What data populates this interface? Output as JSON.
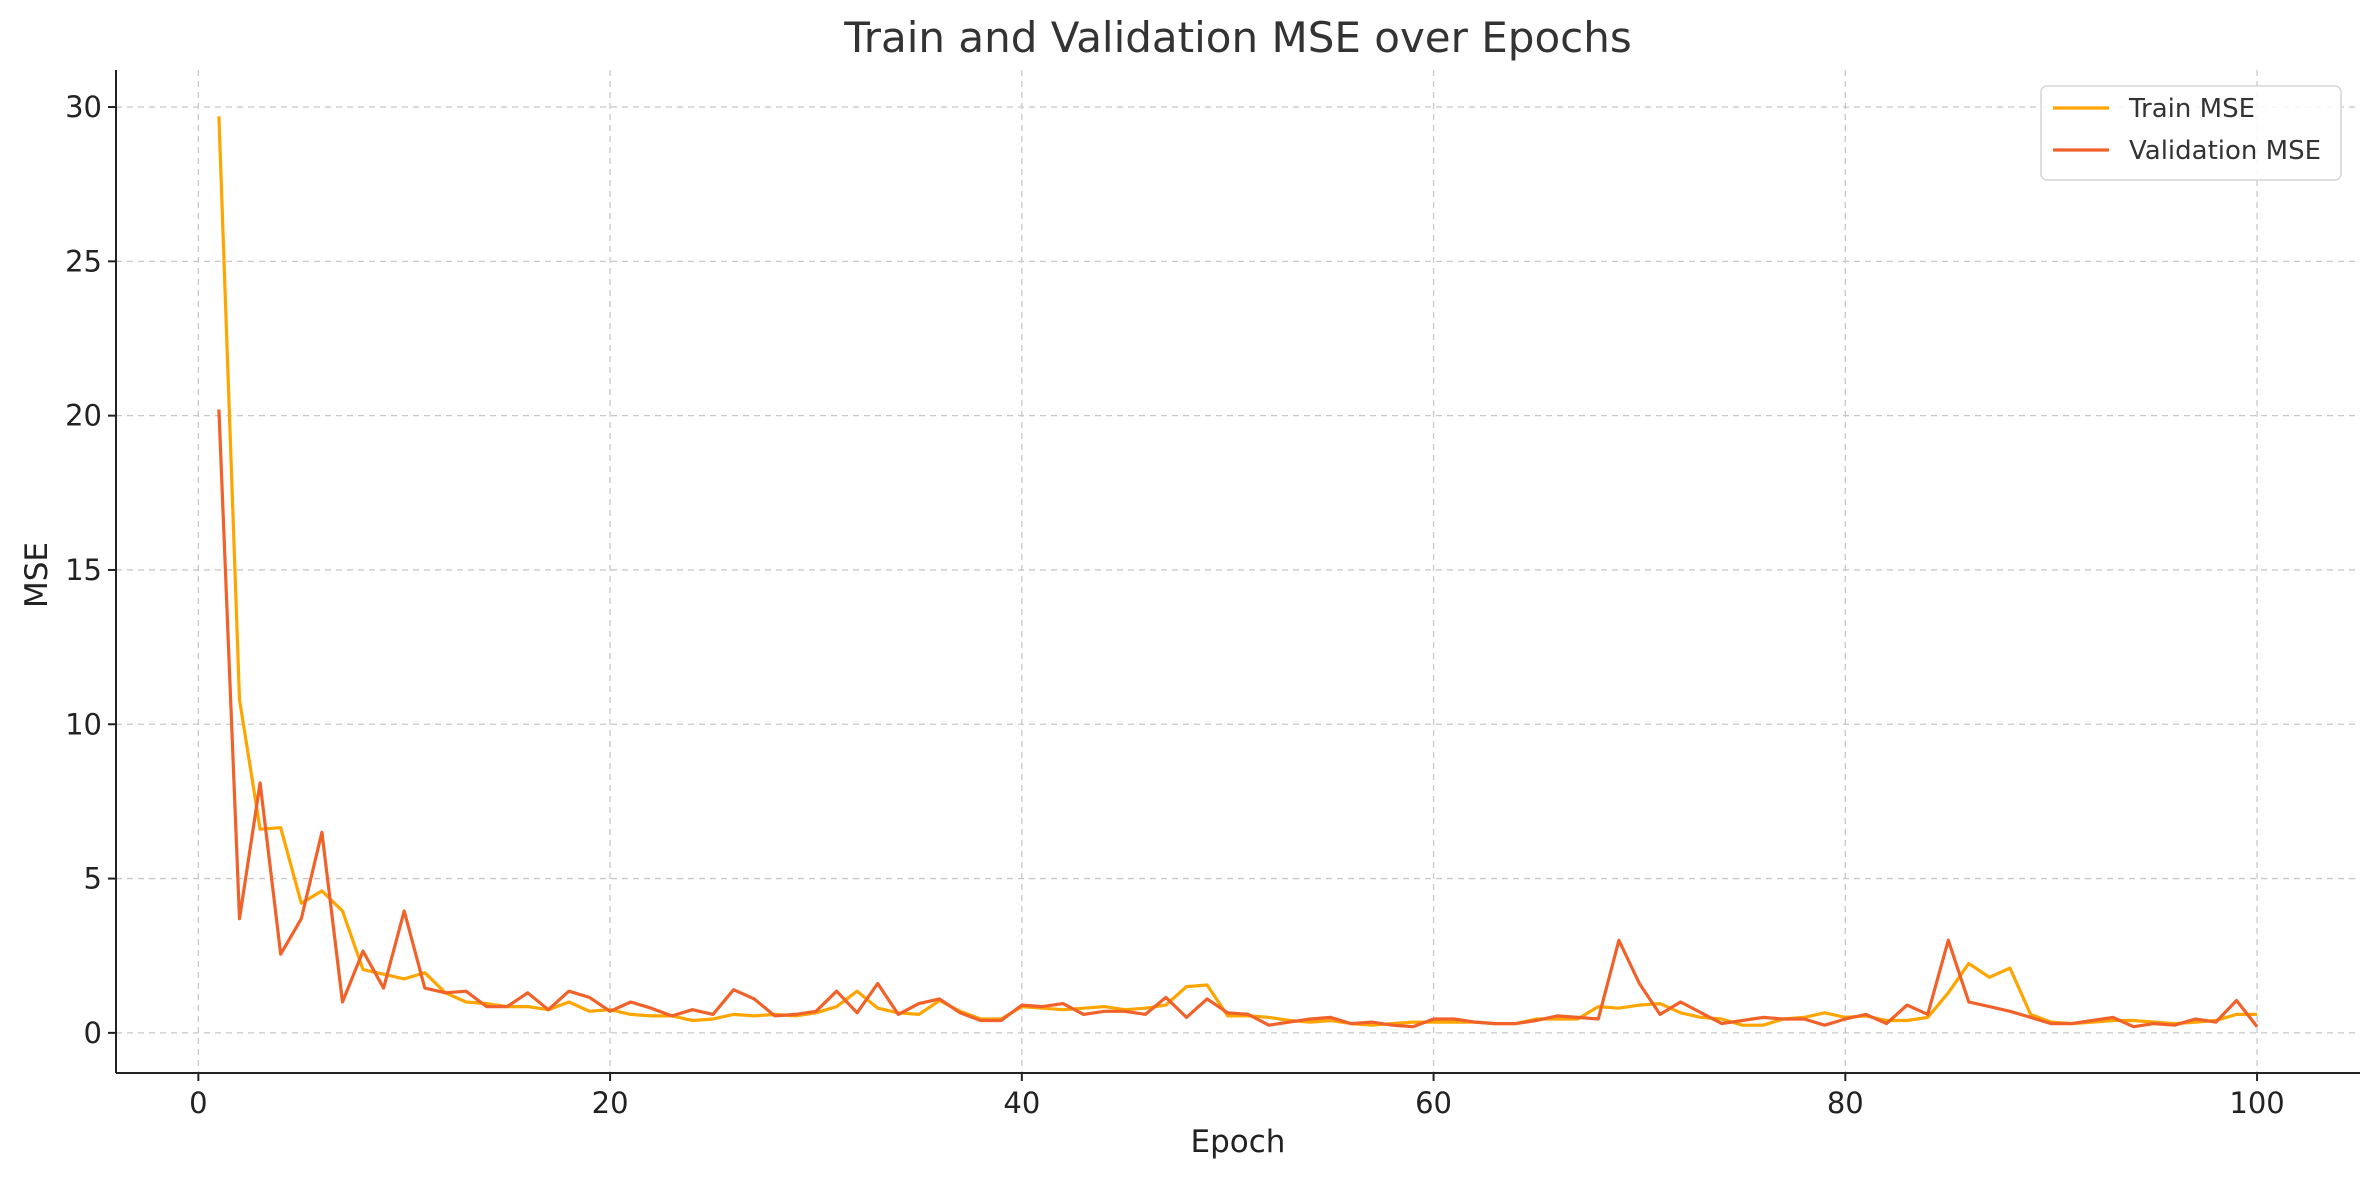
{
  "chart_data": {
    "type": "line",
    "title": "Train and Validation MSE over Epochs",
    "xlabel": "Epoch",
    "ylabel": "MSE",
    "xlim": [
      -4,
      105
    ],
    "ylim": [
      -1.3,
      31.2
    ],
    "xticks": [
      0,
      20,
      40,
      60,
      80,
      100
    ],
    "yticks": [
      0,
      5,
      10,
      15,
      20,
      25,
      30
    ],
    "grid": true,
    "legend_position": "top-right",
    "x": [
      1,
      2,
      3,
      4,
      5,
      6,
      7,
      8,
      9,
      10,
      11,
      12,
      13,
      14,
      15,
      16,
      17,
      18,
      19,
      20,
      21,
      22,
      23,
      24,
      25,
      26,
      27,
      28,
      29,
      30,
      31,
      32,
      33,
      34,
      35,
      36,
      37,
      38,
      39,
      40,
      41,
      42,
      43,
      44,
      45,
      46,
      47,
      48,
      49,
      50,
      51,
      52,
      53,
      54,
      55,
      56,
      57,
      58,
      59,
      60,
      61,
      62,
      63,
      64,
      65,
      66,
      67,
      68,
      69,
      70,
      71,
      72,
      73,
      74,
      75,
      76,
      77,
      78,
      79,
      80,
      81,
      82,
      83,
      84,
      85,
      86,
      87,
      88,
      89,
      90,
      91,
      92,
      93,
      94,
      95,
      96,
      97,
      98,
      99,
      100
    ],
    "series": [
      {
        "name": "Train MSE",
        "color": "#FFA500",
        "values": [
          29.7,
          10.8,
          6.6,
          6.65,
          4.2,
          4.6,
          3.95,
          2.05,
          1.9,
          1.75,
          1.95,
          1.3,
          1.0,
          0.95,
          0.85,
          0.85,
          0.75,
          1.0,
          0.7,
          0.75,
          0.6,
          0.55,
          0.55,
          0.4,
          0.45,
          0.6,
          0.55,
          0.6,
          0.55,
          0.65,
          0.85,
          1.35,
          0.8,
          0.65,
          0.6,
          1.05,
          0.7,
          0.45,
          0.45,
          0.85,
          0.8,
          0.75,
          0.8,
          0.85,
          0.75,
          0.8,
          0.9,
          1.5,
          1.55,
          0.55,
          0.55,
          0.5,
          0.4,
          0.35,
          0.4,
          0.3,
          0.25,
          0.3,
          0.35,
          0.35,
          0.35,
          0.35,
          0.3,
          0.3,
          0.45,
          0.45,
          0.45,
          0.85,
          0.8,
          0.9,
          0.95,
          0.65,
          0.5,
          0.45,
          0.25,
          0.25,
          0.45,
          0.5,
          0.65,
          0.5,
          0.55,
          0.4,
          0.4,
          0.5,
          1.3,
          2.25,
          1.8,
          2.1,
          0.6,
          0.35,
          0.3,
          0.35,
          0.4,
          0.4,
          0.35,
          0.3,
          0.35,
          0.4,
          0.6,
          0.6
        ]
      },
      {
        "name": "Validation MSE",
        "color": "#F0622A",
        "values": [
          20.2,
          3.7,
          8.1,
          2.55,
          3.7,
          6.5,
          1.0,
          2.65,
          1.45,
          3.95,
          1.45,
          1.3,
          1.35,
          0.85,
          0.85,
          1.3,
          0.75,
          1.35,
          1.15,
          0.7,
          1.0,
          0.8,
          0.55,
          0.75,
          0.6,
          1.4,
          1.1,
          0.55,
          0.6,
          0.7,
          1.35,
          0.65,
          1.6,
          0.6,
          0.95,
          1.1,
          0.65,
          0.4,
          0.4,
          0.9,
          0.85,
          0.95,
          0.6,
          0.7,
          0.7,
          0.6,
          1.15,
          0.5,
          1.1,
          0.65,
          0.6,
          0.25,
          0.35,
          0.45,
          0.5,
          0.3,
          0.35,
          0.25,
          0.2,
          0.45,
          0.45,
          0.35,
          0.3,
          0.3,
          0.4,
          0.55,
          0.5,
          0.45,
          3.0,
          1.6,
          0.6,
          1.0,
          0.65,
          0.3,
          0.4,
          0.5,
          0.45,
          0.45,
          0.25,
          0.45,
          0.6,
          0.3,
          0.9,
          0.6,
          3.0,
          1.0,
          0.85,
          0.7,
          0.5,
          0.3,
          0.3,
          0.4,
          0.5,
          0.2,
          0.3,
          0.25,
          0.45,
          0.35,
          1.05,
          0.2
        ]
      }
    ]
  }
}
